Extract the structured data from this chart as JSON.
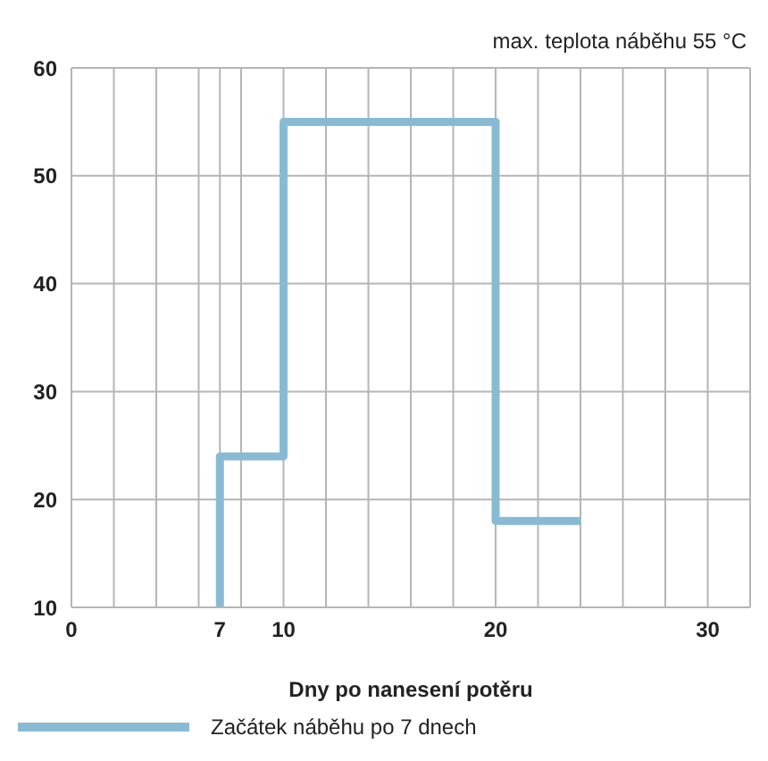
{
  "chart_data": {
    "type": "line",
    "xlabel": "Dny po nanesení potěru",
    "annotations": [
      "max. teplota náběhu 55 °C"
    ],
    "series": [
      {
        "name": "Začátek náběhu po 7 dnech",
        "color": "#88bbd3",
        "x": [
          7,
          7,
          10,
          10,
          20,
          20,
          24
        ],
        "values": [
          10,
          24,
          24,
          55,
          55,
          18,
          18
        ]
      }
    ],
    "xlim": [
      0,
      32
    ],
    "xticks": [
      0,
      {
        "value": 2,
        "label": null
      },
      {
        "value": 4,
        "label": null
      },
      {
        "value": 6,
        "label": null
      },
      7,
      {
        "value": 8,
        "label": null
      },
      10,
      {
        "value": 12,
        "label": null
      },
      {
        "value": 14,
        "label": null
      },
      {
        "value": 16,
        "label": null
      },
      {
        "value": 18,
        "label": null
      },
      20,
      {
        "value": 22,
        "label": null
      },
      {
        "value": 24,
        "label": null
      },
      {
        "value": 26,
        "label": null
      },
      {
        "value": 28,
        "label": null
      },
      30,
      {
        "value": 32,
        "label": null
      }
    ],
    "ylim": [
      10,
      60
    ],
    "yticks": [
      10,
      20,
      30,
      40,
      50,
      60
    ],
    "grid": true,
    "legend": "bottom",
    "marker": "none",
    "line_style": "solid"
  }
}
